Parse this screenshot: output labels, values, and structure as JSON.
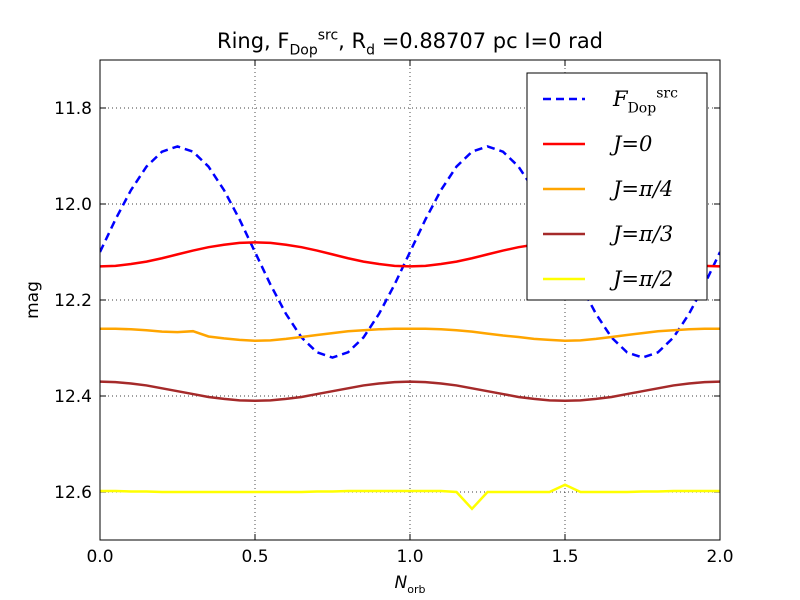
{
  "chart_data": {
    "type": "line",
    "title": "Ring, F_Dop^src, R_d =0.88707 pc  I=0 rad",
    "x_label": "N_orb",
    "y_label": "mag",
    "xlim": [
      0,
      2
    ],
    "xticks": [
      {
        "value": 0,
        "label": "0.0"
      },
      0.5,
      {
        "value": 1,
        "label": "1.0"
      },
      1.5,
      {
        "value": 2,
        "label": "2.0"
      }
    ],
    "ylim": [
      11.7,
      12.7
    ],
    "y_inverted": true,
    "yticks": [
      11.8,
      {
        "value": 12,
        "label": "12.0"
      },
      12.2,
      12.4,
      12.6
    ],
    "grid": true,
    "legend": "upper right",
    "x": [
      0,
      0.05,
      0.1,
      0.15,
      0.2,
      0.25,
      0.3,
      0.35,
      0.4,
      0.45,
      0.5,
      0.55,
      0.6,
      0.65,
      0.7,
      0.75,
      0.8,
      0.85,
      0.9,
      0.95,
      1,
      1.05,
      1.1,
      1.15,
      1.2,
      1.25,
      1.3,
      1.35,
      1.4,
      1.45,
      1.5,
      1.55,
      1.6,
      1.65,
      1.7,
      1.75,
      1.8,
      1.85,
      1.9,
      1.95,
      2
    ],
    "series": [
      {
        "name": "F_Dop^src",
        "color": "#0000ff",
        "linestyle": "dashed",
        "values": [
          12.1,
          12.032,
          11.971,
          11.922,
          11.891,
          11.88,
          11.891,
          11.922,
          11.971,
          12.032,
          12.1,
          12.168,
          12.229,
          12.278,
          12.309,
          12.32,
          12.309,
          12.278,
          12.229,
          12.168,
          12.1,
          12.032,
          11.971,
          11.922,
          11.891,
          11.88,
          11.891,
          11.922,
          11.971,
          12.032,
          12.1,
          12.168,
          12.229,
          12.278,
          12.309,
          12.32,
          12.309,
          12.278,
          12.229,
          12.168,
          12.1
        ]
      },
      {
        "name": "J=0",
        "color": "#ff0000",
        "linestyle": "solid",
        "values": [
          12.13,
          12.129,
          12.125,
          12.12,
          12.113,
          12.105,
          12.097,
          12.09,
          12.085,
          12.081,
          12.08,
          12.081,
          12.085,
          12.09,
          12.097,
          12.105,
          12.113,
          12.12,
          12.125,
          12.129,
          12.13,
          12.129,
          12.125,
          12.12,
          12.113,
          12.105,
          12.097,
          12.09,
          12.085,
          12.081,
          12.08,
          12.081,
          12.085,
          12.09,
          12.097,
          12.105,
          12.113,
          12.12,
          12.125,
          12.129,
          12.13
        ]
      },
      {
        "name": "J=π/4",
        "color": "#ffa500",
        "linestyle": "solid",
        "values": [
          12.26,
          12.26,
          12.261,
          12.263,
          12.266,
          12.267,
          12.265,
          12.276,
          12.28,
          12.283,
          12.285,
          12.284,
          12.281,
          12.277,
          12.273,
          12.269,
          12.265,
          12.263,
          12.261,
          12.26,
          12.26,
          12.26,
          12.261,
          12.263,
          12.266,
          12.27,
          12.274,
          12.277,
          12.281,
          12.283,
          12.285,
          12.284,
          12.281,
          12.277,
          12.273,
          12.269,
          12.265,
          12.263,
          12.261,
          12.26,
          12.26
        ]
      },
      {
        "name": "J=π/3",
        "color": "#a52a2a",
        "linestyle": "solid",
        "values": [
          12.37,
          12.371,
          12.374,
          12.378,
          12.384,
          12.39,
          12.396,
          12.402,
          12.406,
          12.409,
          12.41,
          12.409,
          12.406,
          12.402,
          12.396,
          12.39,
          12.384,
          12.378,
          12.374,
          12.371,
          12.37,
          12.371,
          12.374,
          12.378,
          12.384,
          12.39,
          12.396,
          12.402,
          12.406,
          12.409,
          12.41,
          12.409,
          12.406,
          12.402,
          12.396,
          12.39,
          12.384,
          12.378,
          12.374,
          12.371,
          12.37
        ]
      },
      {
        "name": "J=π/2",
        "color": "#ffff00",
        "linestyle": "solid",
        "values": [
          12.598,
          12.598,
          12.599,
          12.599,
          12.6,
          12.6,
          12.6,
          12.6,
          12.6,
          12.6,
          12.6,
          12.6,
          12.6,
          12.6,
          12.599,
          12.599,
          12.598,
          12.598,
          12.598,
          12.598,
          12.598,
          12.598,
          12.598,
          12.6,
          12.635,
          12.6,
          12.6,
          12.6,
          12.6,
          12.6,
          12.585,
          12.6,
          12.6,
          12.6,
          12.6,
          12.599,
          12.599,
          12.598,
          12.598,
          12.598,
          12.598
        ]
      }
    ]
  }
}
